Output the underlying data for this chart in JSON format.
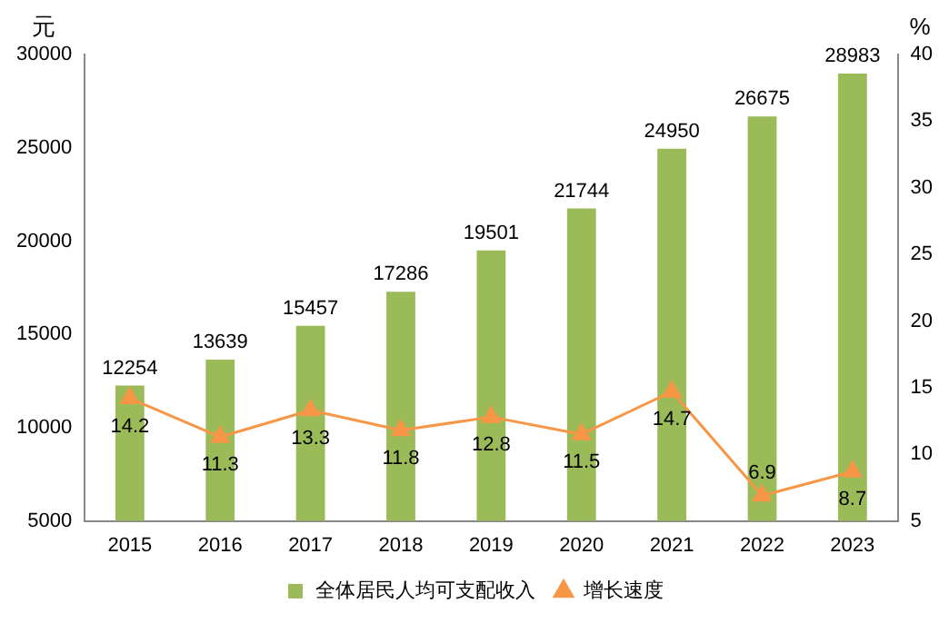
{
  "chart_data": {
    "type": "bar",
    "ylabel": "元",
    "y2label": "%",
    "categories": [
      "2015",
      "2016",
      "2017",
      "2018",
      "2019",
      "2020",
      "2021",
      "2022",
      "2023"
    ],
    "series": [
      {
        "name": "全体居民人均可支配收入",
        "color": "#9bbb59",
        "values": [
          12254,
          13639,
          15457,
          17286,
          19501,
          21744,
          24950,
          26675,
          28983
        ]
      },
      {
        "name": "增长速度",
        "type": "line",
        "axis": "y2",
        "color": "#f79646",
        "marker": "triangle",
        "values": [
          14.2,
          11.3,
          13.3,
          11.8,
          12.8,
          11.5,
          14.7,
          6.9,
          8.7
        ]
      }
    ],
    "ylim": [
      5000,
      30000
    ],
    "yticks": [
      5000,
      10000,
      15000,
      20000,
      25000,
      30000
    ],
    "y2lim": [
      5,
      40
    ],
    "y2ticks": [
      5,
      10,
      15,
      20,
      25,
      30,
      35,
      40
    ],
    "data_labels": true,
    "grid": false,
    "legend": "bottom"
  }
}
